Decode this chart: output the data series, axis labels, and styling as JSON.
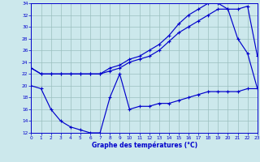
{
  "xlabel": "Graphe des températures (°C)",
  "xlim": [
    0,
    23
  ],
  "ylim": [
    12,
    34
  ],
  "yticks": [
    12,
    14,
    16,
    18,
    20,
    22,
    24,
    26,
    28,
    30,
    32,
    34
  ],
  "xticks": [
    0,
    1,
    2,
    3,
    4,
    5,
    6,
    7,
    8,
    9,
    10,
    11,
    12,
    13,
    14,
    15,
    16,
    17,
    18,
    19,
    20,
    21,
    22,
    23
  ],
  "bg_color": "#cce8ec",
  "line_color": "#0000cc",
  "grid_color": "#9bbfbf",
  "line1_x": [
    0,
    1,
    2,
    3,
    4,
    5,
    6,
    7,
    8,
    9,
    10,
    11,
    12,
    13,
    14,
    15,
    16,
    17,
    18,
    19,
    20,
    21,
    22,
    23
  ],
  "line1_y": [
    23,
    22,
    22,
    22,
    22,
    22,
    22,
    22,
    23,
    23.5,
    24.5,
    25,
    26,
    27,
    28.5,
    30.5,
    32,
    33,
    34,
    34,
    33,
    28,
    25.5,
    19.5
  ],
  "line2_x": [
    0,
    1,
    2,
    3,
    4,
    5,
    6,
    7,
    8,
    9,
    10,
    11,
    12,
    13,
    14,
    15,
    16,
    17,
    18,
    19,
    20,
    21,
    22,
    23
  ],
  "line2_y": [
    23,
    22,
    22,
    22,
    22,
    22,
    22,
    22,
    22.5,
    23,
    24,
    24.5,
    25,
    26,
    27.5,
    29,
    30,
    31,
    32,
    33,
    33,
    33,
    33.5,
    25
  ],
  "line3_x": [
    0,
    1,
    2,
    3,
    4,
    5,
    6,
    7,
    8,
    9,
    10,
    11,
    12,
    13,
    14,
    15,
    16,
    17,
    18,
    19,
    20,
    21,
    22,
    23
  ],
  "line3_y": [
    20,
    19.5,
    16,
    14,
    13,
    12.5,
    12,
    12,
    18,
    22,
    16,
    16.5,
    16.5,
    17,
    17,
    17.5,
    18,
    18.5,
    19,
    19,
    19,
    19,
    19.5,
    19.5
  ]
}
